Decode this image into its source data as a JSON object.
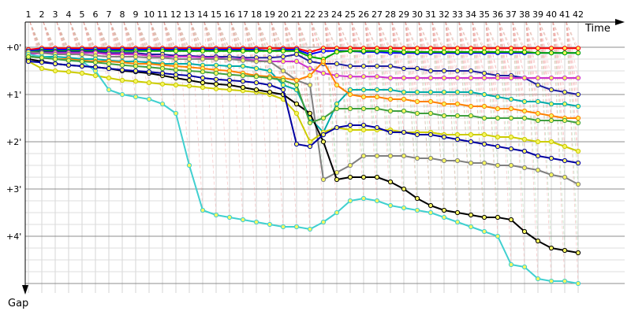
{
  "chart_data": {
    "type": "line",
    "xlabel": "Time",
    "ylabel": "Gap",
    "x_ticks": [
      "1",
      "2",
      "3",
      "4",
      "5",
      "6",
      "7",
      "8",
      "9",
      "10",
      "11",
      "12",
      "13",
      "14",
      "15",
      "16",
      "17",
      "18",
      "19",
      "20",
      "21",
      "22",
      "23",
      "24",
      "25",
      "26",
      "27",
      "28",
      "29",
      "30",
      "31",
      "32",
      "33",
      "34",
      "35",
      "36",
      "37",
      "38",
      "39",
      "40",
      "41",
      "42"
    ],
    "y_ticks": [
      "+0'",
      "+1'",
      "+2'",
      "+3'",
      "+4'"
    ],
    "y_unit": "minutes",
    "ylim": [
      0,
      5
    ],
    "grid": true,
    "legend": "none",
    "series": [
      {
        "color": "#ff0000",
        "values": [
          0.05,
          0.02,
          0.02,
          0.02,
          0.02,
          0.02,
          0.02,
          0.02,
          0.02,
          0.02,
          0.02,
          0.02,
          0.02,
          0.02,
          0.02,
          0.02,
          0.02,
          0.02,
          0.02,
          0.02,
          0.02,
          0.1,
          0.02,
          0.02,
          0.02,
          0.02,
          0.02,
          0.02,
          0.02,
          0.02,
          0.02,
          0.02,
          0.02,
          0.02,
          0.02,
          0.02,
          0.02,
          0.02,
          0.02,
          0.02,
          0.02,
          0.02
        ]
      },
      {
        "color": "#0000ff",
        "values": [
          0.08,
          0.05,
          0.05,
          0.05,
          0.05,
          0.05,
          0.05,
          0.05,
          0.05,
          0.05,
          0.05,
          0.05,
          0.05,
          0.05,
          0.05,
          0.05,
          0.05,
          0.05,
          0.08,
          0.05,
          0.05,
          0.15,
          0.08,
          0.08,
          0.08,
          0.1,
          0.1,
          0.12,
          0.12,
          0.12,
          0.12,
          0.12,
          0.12,
          0.12,
          0.12,
          0.12,
          0.12,
          0.12,
          0.12,
          0.12,
          0.12,
          0.12
        ]
      },
      {
        "color": "#00aa00",
        "values": [
          0.1,
          0.08,
          0.08,
          0.08,
          0.08,
          0.08,
          0.08,
          0.08,
          0.08,
          0.08,
          0.08,
          0.08,
          0.08,
          0.08,
          0.08,
          0.08,
          0.08,
          0.08,
          0.08,
          0.08,
          0.08,
          0.2,
          0.25,
          0.1,
          0.08,
          0.08,
          0.08,
          0.08,
          0.1,
          0.1,
          0.1,
          0.1,
          0.1,
          0.1,
          0.1,
          0.1,
          0.1,
          0.1,
          0.12,
          0.12,
          0.12,
          0.12
        ]
      },
      {
        "color": "#2020a0",
        "values": [
          0.12,
          0.1,
          0.1,
          0.1,
          0.1,
          0.1,
          0.12,
          0.12,
          0.12,
          0.15,
          0.15,
          0.18,
          0.18,
          0.2,
          0.2,
          0.2,
          0.22,
          0.22,
          0.22,
          0.2,
          0.15,
          0.3,
          0.35,
          0.35,
          0.4,
          0.4,
          0.4,
          0.4,
          0.45,
          0.45,
          0.5,
          0.5,
          0.5,
          0.5,
          0.55,
          0.6,
          0.6,
          0.65,
          0.8,
          0.9,
          0.95,
          1.0
        ]
      },
      {
        "color": "#cc33cc",
        "values": [
          0.15,
          0.12,
          0.12,
          0.12,
          0.12,
          0.12,
          0.15,
          0.15,
          0.15,
          0.18,
          0.2,
          0.2,
          0.2,
          0.22,
          0.22,
          0.25,
          0.25,
          0.28,
          0.3,
          0.3,
          0.3,
          0.45,
          0.55,
          0.6,
          0.62,
          0.62,
          0.62,
          0.65,
          0.65,
          0.65,
          0.65,
          0.65,
          0.65,
          0.65,
          0.65,
          0.65,
          0.65,
          0.65,
          0.65,
          0.65,
          0.65,
          0.65
        ]
      },
      {
        "color": "#808080",
        "values": [
          0.1,
          0.12,
          0.15,
          0.15,
          0.15,
          0.18,
          0.2,
          0.2,
          0.2,
          0.22,
          0.22,
          0.25,
          0.25,
          0.25,
          0.25,
          0.25,
          0.28,
          0.3,
          0.3,
          0.5,
          0.7,
          0.8,
          2.8,
          2.65,
          2.5,
          2.3,
          2.3,
          2.3,
          2.3,
          2.35,
          2.35,
          2.4,
          2.4,
          2.45,
          2.45,
          2.5,
          2.5,
          2.55,
          2.6,
          2.7,
          2.75,
          2.9
        ]
      },
      {
        "color": "#00aaaa",
        "values": [
          0.2,
          0.2,
          0.2,
          0.22,
          0.25,
          0.25,
          0.28,
          0.3,
          0.3,
          0.32,
          0.35,
          0.35,
          0.35,
          0.38,
          0.38,
          0.4,
          0.4,
          0.45,
          0.5,
          0.8,
          0.9,
          1.5,
          1.8,
          1.2,
          0.9,
          0.9,
          0.9,
          0.9,
          0.95,
          0.95,
          0.95,
          0.95,
          0.95,
          0.95,
          1.0,
          1.05,
          1.1,
          1.15,
          1.15,
          1.2,
          1.2,
          1.25
        ]
      },
      {
        "color": "#ff8000",
        "values": [
          0.2,
          0.22,
          0.25,
          0.25,
          0.28,
          0.3,
          0.3,
          0.32,
          0.35,
          0.35,
          0.38,
          0.4,
          0.42,
          0.45,
          0.48,
          0.5,
          0.55,
          0.6,
          0.62,
          0.65,
          0.7,
          0.6,
          0.3,
          0.8,
          1.0,
          1.05,
          1.05,
          1.1,
          1.1,
          1.15,
          1.15,
          1.2,
          1.2,
          1.25,
          1.25,
          1.3,
          1.3,
          1.35,
          1.4,
          1.45,
          1.5,
          1.5
        ]
      },
      {
        "color": "#cccc00",
        "values": [
          0.3,
          0.45,
          0.5,
          0.52,
          0.55,
          0.6,
          0.65,
          0.7,
          0.72,
          0.75,
          0.78,
          0.8,
          0.82,
          0.85,
          0.88,
          0.9,
          0.92,
          0.95,
          1.0,
          1.1,
          1.4,
          2.0,
          1.8,
          1.7,
          1.75,
          1.75,
          1.75,
          1.75,
          1.8,
          1.8,
          1.8,
          1.85,
          1.85,
          1.85,
          1.85,
          1.9,
          1.9,
          1.95,
          2.0,
          2.0,
          2.1,
          2.2
        ]
      },
      {
        "color": "#000000",
        "values": [
          0.25,
          0.3,
          0.35,
          0.38,
          0.4,
          0.42,
          0.45,
          0.5,
          0.52,
          0.55,
          0.6,
          0.65,
          0.7,
          0.75,
          0.78,
          0.8,
          0.85,
          0.9,
          0.95,
          1.0,
          1.2,
          1.4,
          2.0,
          2.8,
          2.75,
          2.75,
          2.75,
          2.85,
          3.0,
          3.2,
          3.35,
          3.45,
          3.5,
          3.55,
          3.6,
          3.6,
          3.65,
          3.9,
          4.1,
          4.25,
          4.3,
          4.35
        ]
      },
      {
        "color": "#40d0d0",
        "values": [
          0.15,
          0.2,
          0.25,
          0.28,
          0.3,
          0.5,
          0.9,
          1.0,
          1.05,
          1.1,
          1.2,
          1.4,
          2.5,
          3.45,
          3.55,
          3.6,
          3.65,
          3.7,
          3.75,
          3.8,
          3.8,
          3.85,
          3.7,
          3.5,
          3.25,
          3.2,
          3.25,
          3.35,
          3.4,
          3.45,
          3.5,
          3.6,
          3.7,
          3.8,
          3.9,
          4.0,
          4.6,
          4.65,
          4.9,
          4.95,
          4.95,
          5.0
        ]
      },
      {
        "color": "#0000a0",
        "values": [
          0.3,
          0.32,
          0.35,
          0.38,
          0.4,
          0.42,
          0.45,
          0.48,
          0.5,
          0.52,
          0.55,
          0.58,
          0.6,
          0.65,
          0.68,
          0.7,
          0.72,
          0.75,
          0.8,
          0.9,
          2.05,
          2.1,
          1.85,
          1.7,
          1.65,
          1.65,
          1.7,
          1.8,
          1.8,
          1.85,
          1.85,
          1.9,
          1.95,
          2.0,
          2.05,
          2.1,
          2.15,
          2.2,
          2.3,
          2.35,
          2.4,
          2.45
        ]
      },
      {
        "color": "#40a040",
        "values": [
          0.2,
          0.22,
          0.25,
          0.28,
          0.3,
          0.32,
          0.35,
          0.38,
          0.4,
          0.42,
          0.45,
          0.48,
          0.5,
          0.52,
          0.55,
          0.58,
          0.6,
          0.62,
          0.65,
          0.7,
          0.8,
          1.6,
          1.5,
          1.3,
          1.3,
          1.3,
          1.3,
          1.35,
          1.35,
          1.4,
          1.4,
          1.45,
          1.45,
          1.45,
          1.5,
          1.5,
          1.5,
          1.5,
          1.55,
          1.55,
          1.55,
          1.6
        ]
      }
    ]
  }
}
